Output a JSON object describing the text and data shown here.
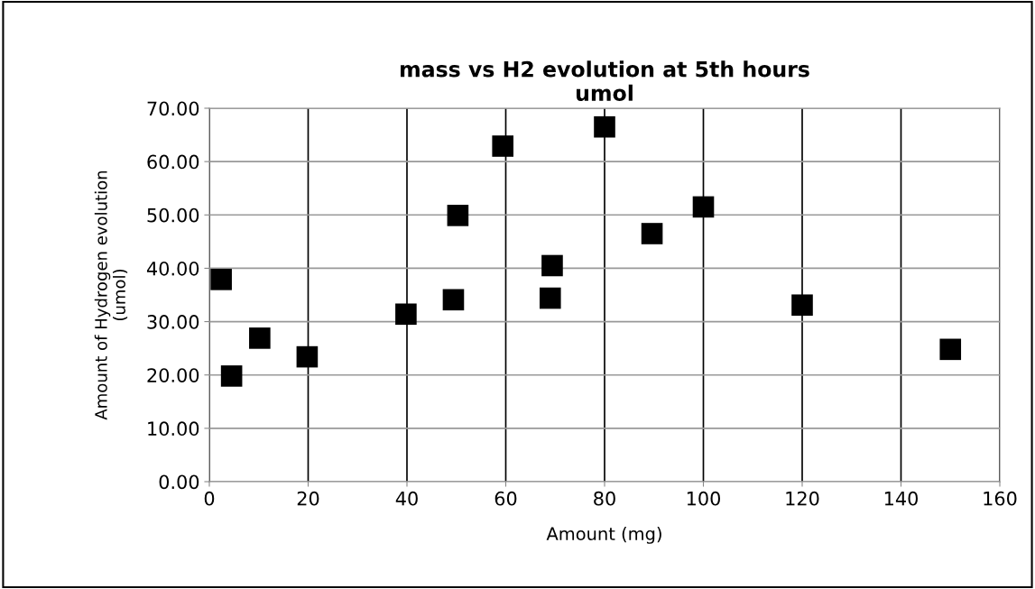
{
  "chart_data": {
    "type": "scatter",
    "title": "mass vs H2 evolution at 5th hours\numol",
    "xlabel": "Amount (mg)",
    "ylabel": "Amount of Hydrogen evolution\n(umol)",
    "series": [
      {
        "color": "#000000",
        "x": [
          2.4,
          4.5,
          10.2,
          19.8,
          39.8,
          49.4,
          50.3,
          59.4,
          69.0,
          69.4,
          80,
          89.6,
          100,
          120,
          150
        ],
        "values": [
          37.9,
          19.8,
          26.9,
          23.4,
          31.4,
          34.1,
          49.9,
          62.9,
          34.4,
          40.5,
          66.5,
          46.5,
          51.5,
          33.1,
          24.8
        ]
      }
    ],
    "marker": "square",
    "grid": true,
    "legend": false,
    "xlim": [
      0,
      160
    ],
    "xticks": [
      0,
      20,
      40,
      60,
      80,
      100,
      120,
      140,
      160
    ],
    "ylim": [
      0,
      70
    ],
    "yticks": [
      {
        "value": 0,
        "label": "0.00"
      },
      {
        "value": 10,
        "label": "10.00"
      },
      {
        "value": 20,
        "label": "20.00"
      },
      {
        "value": 30,
        "label": "30.00"
      },
      {
        "value": 40,
        "label": "40.00"
      },
      {
        "value": 50,
        "label": "50.00"
      },
      {
        "value": 60,
        "label": "60.00"
      },
      {
        "value": 70,
        "label": "70.00"
      }
    ]
  }
}
